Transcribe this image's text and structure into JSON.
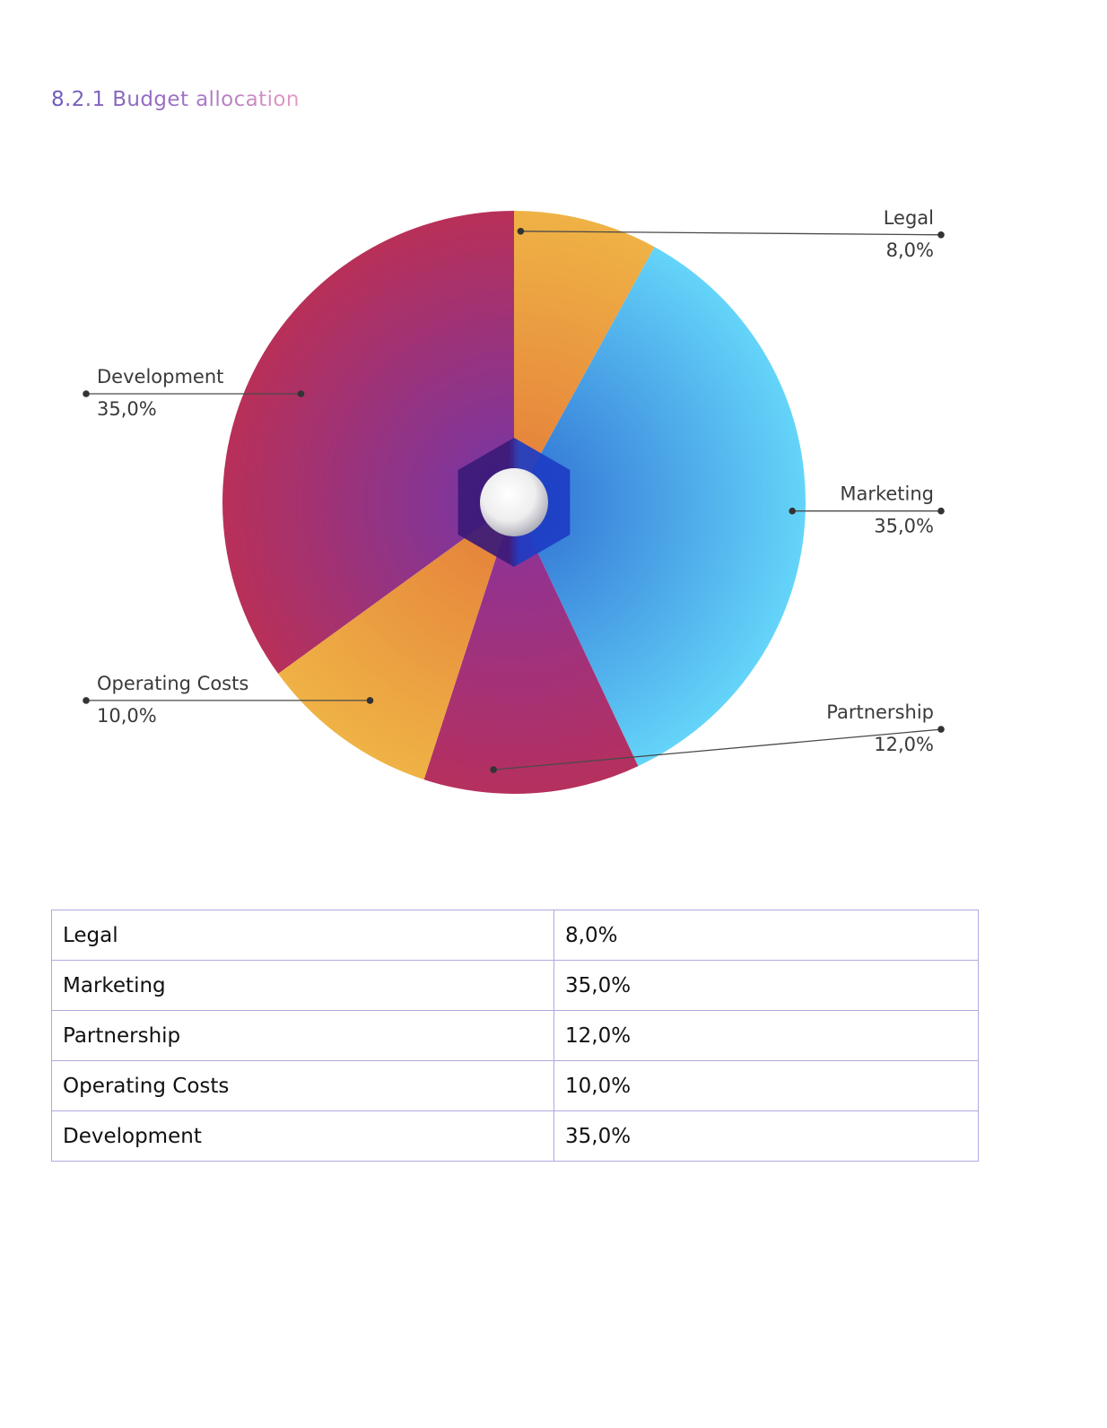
{
  "section_title": "8.2.1 Budget allocation",
  "chart_data": {
    "type": "pie",
    "title": "",
    "start_angle_deg": 0,
    "direction": "clockwise",
    "slices": [
      {
        "label": "Legal",
        "value": 8.0,
        "display": "8,0%",
        "colors": [
          "#e5813b",
          "#efb245"
        ]
      },
      {
        "label": "Marketing",
        "value": 35.0,
        "display": "35,0%",
        "colors": [
          "#3478d6",
          "#64d4f9"
        ]
      },
      {
        "label": "Partnership",
        "value": 12.0,
        "display": "12,0%",
        "colors": [
          "#8d3399",
          "#b5305e"
        ]
      },
      {
        "label": "Operating Costs",
        "value": 10.0,
        "display": "10,0%",
        "colors": [
          "#e5813b",
          "#efb245"
        ]
      },
      {
        "label": "Development",
        "value": 35.0,
        "display": "35,0%",
        "colors": [
          "#7a36a2",
          "#b83058"
        ]
      }
    ],
    "center_ornament": {
      "hexagon_colors": [
        "#3a1a78",
        "#1d3cc4"
      ],
      "sphere_color": "#eeeeee"
    }
  },
  "table": {
    "rows": [
      {
        "name": "Legal",
        "value": "8,0%"
      },
      {
        "name": "Marketing",
        "value": "35,0%"
      },
      {
        "name": "Partnership",
        "value": "12,0%"
      },
      {
        "name": "Operating Costs",
        "value": "10,0%"
      },
      {
        "name": "Development",
        "value": "35,0%"
      }
    ]
  }
}
